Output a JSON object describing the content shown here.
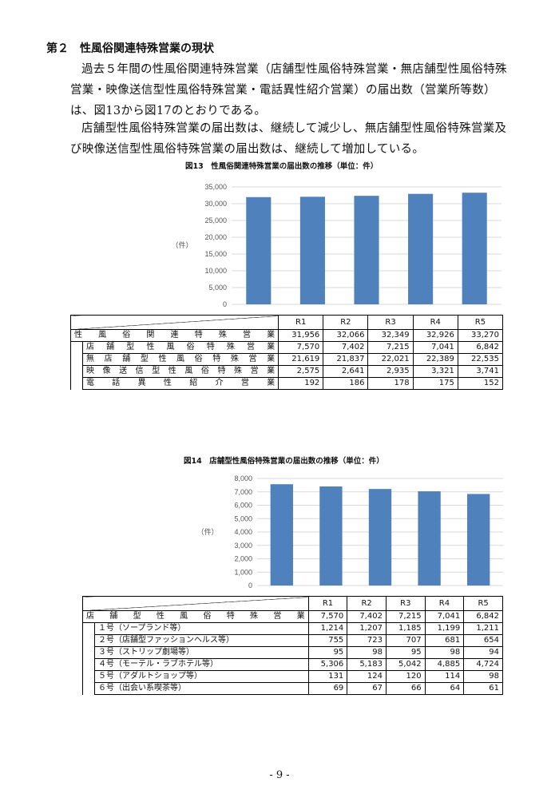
{
  "heading": "第２　性風俗関連特殊営業の現状",
  "paragraphs": [
    "過去５年間の性風俗関連特殊営業（店舗型性風俗特殊営業・無店舗型性風俗特殊営業・映像送信型性風俗特殊営業・電話異性紹介営業）の届出数（営業所等数）は、図13から図17のとおりである。",
    "店舗型性風俗特殊営業の届出数は、継続して減少し、無店舗型性風俗特殊営業及び映像送信型性風俗特殊営業の届出数は、継続して増加している。"
  ],
  "chart_data": [
    {
      "type": "bar",
      "title": "図13　性風俗関連特殊営業の届出数の推移（単位：件）",
      "ylabel": "（件）",
      "categories": [
        "R1",
        "R2",
        "R3",
        "R4",
        "R5"
      ],
      "values": [
        31956,
        32066,
        32349,
        32926,
        33270
      ],
      "ylim": [
        0,
        35000
      ],
      "yticks": [
        "0",
        "5,000",
        "10,000",
        "15,000",
        "20,000",
        "25,000",
        "30,000",
        "35,000"
      ],
      "grid": true,
      "bar_color": "#4f81bd"
    },
    {
      "type": "bar",
      "title": "図14　店舗型性風俗特殊営業の届出数の推移（単位：件）",
      "ylabel": "（件）",
      "categories": [
        "R1",
        "R2",
        "R3",
        "R4",
        "R5"
      ],
      "values": [
        7570,
        7402,
        7215,
        7041,
        6842
      ],
      "ylim": [
        0,
        8000
      ],
      "yticks": [
        "0",
        "1,000",
        "2,000",
        "3,000",
        "4,000",
        "5,000",
        "6,000",
        "7,000",
        "8,000"
      ],
      "grid": true,
      "bar_color": "#4f81bd"
    }
  ],
  "table1": {
    "columns": [
      "R1",
      "R2",
      "R3",
      "R4",
      "R5"
    ],
    "total": {
      "label": "性風俗関連特殊営業",
      "values": [
        "31,956",
        "32,066",
        "32,349",
        "32,926",
        "33,270"
      ]
    },
    "rows": [
      {
        "label": "店舗型性風俗特殊営業",
        "values": [
          "7,570",
          "7,402",
          "7,215",
          "7,041",
          "6,842"
        ]
      },
      {
        "label": "無店舗型性風俗特殊営業",
        "values": [
          "21,619",
          "21,837",
          "22,021",
          "22,389",
          "22,535"
        ]
      },
      {
        "label": "映像送信型性風俗特殊営業",
        "values": [
          "2,575",
          "2,641",
          "2,935",
          "3,321",
          "3,741"
        ]
      },
      {
        "label": "電話異性紹介営業",
        "values": [
          "192",
          "186",
          "178",
          "175",
          "152"
        ]
      }
    ]
  },
  "table2": {
    "columns": [
      "R1",
      "R2",
      "R3",
      "R4",
      "R5"
    ],
    "total": {
      "label": "店舗型性風俗特殊営業",
      "values": [
        "7,570",
        "7,402",
        "7,215",
        "7,041",
        "6,842"
      ]
    },
    "rows": [
      {
        "label": "１号（ソープランド等）",
        "values": [
          "1,214",
          "1,207",
          "1,185",
          "1,199",
          "1,211"
        ]
      },
      {
        "label": "２号（店舗型ファッションヘルス等）",
        "values": [
          "755",
          "723",
          "707",
          "681",
          "654"
        ]
      },
      {
        "label": "３号（ストリップ劇場等）",
        "values": [
          "95",
          "98",
          "95",
          "98",
          "94"
        ]
      },
      {
        "label": "４号（モーテル・ラブホテル等）",
        "values": [
          "5,306",
          "5,183",
          "5,042",
          "4,885",
          "4,724"
        ]
      },
      {
        "label": "５号（アダルトショップ等）",
        "values": [
          "131",
          "124",
          "120",
          "114",
          "98"
        ]
      },
      {
        "label": "６号（出会い系喫茶等）",
        "values": [
          "69",
          "67",
          "66",
          "64",
          "61"
        ]
      }
    ]
  },
  "page_number": "- 9 -"
}
